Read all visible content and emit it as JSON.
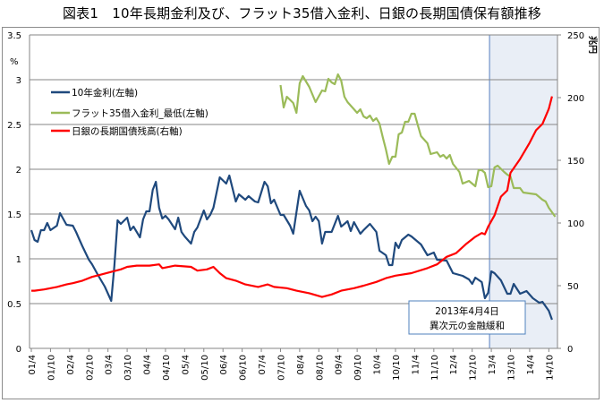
{
  "title": "図表1　10年長期金利及び、フラット35借入金利、日銀の長期国債保有額推移",
  "chart_data": {
    "type": "line",
    "title": "図表1　10年長期金利及び、フラット35借入金利、日銀の長期国債保有額推移",
    "left_axis": {
      "unit": "%",
      "range": [
        0,
        3.5
      ],
      "ticks": [
        "0",
        "0.5",
        "1",
        "1.5",
        "2",
        "2.5",
        "3",
        "3.5"
      ]
    },
    "right_axis": {
      "unit": "兆円",
      "range": [
        0,
        250
      ],
      "ticks": [
        "0",
        "50",
        "100",
        "150",
        "200",
        "250"
      ]
    },
    "x_axis": {
      "range": [
        "2001-04",
        "2014-12"
      ],
      "ticks": [
        "01/4",
        "01/10",
        "02/4",
        "02/10",
        "03/4",
        "03/10",
        "04/4",
        "04/10",
        "05/4",
        "05/10",
        "06/4",
        "06/10",
        "07/4",
        "07/10",
        "08/4",
        "08/10",
        "09/4",
        "09/10",
        "10/4",
        "10/10",
        "11/4",
        "11/10",
        "12/4",
        "12/10",
        "13/4",
        "13/10",
        "14/4",
        "14/10"
      ]
    },
    "grid": "horizontal",
    "legend_position": "top-left",
    "shaded_region": {
      "from": "2013-04",
      "to": "2014-12",
      "color": "#e9eef6"
    },
    "annotation": {
      "date": "2013-04",
      "line1": "2013年4月4日",
      "line2": "異次元の金融緩和"
    },
    "series": [
      {
        "name": "10年金利(左軸)",
        "axis": "left",
        "color": "#1f497d",
        "points": [
          [
            "2001-04",
            1.32
          ],
          [
            "2001-05",
            1.21
          ],
          [
            "2001-06",
            1.19
          ],
          [
            "2001-07",
            1.32
          ],
          [
            "2001-08",
            1.32
          ],
          [
            "2001-09",
            1.4
          ],
          [
            "2001-10",
            1.32
          ],
          [
            "2001-12",
            1.37
          ],
          [
            "2002-01",
            1.51
          ],
          [
            "2002-03",
            1.38
          ],
          [
            "2002-05",
            1.37
          ],
          [
            "2002-06",
            1.3
          ],
          [
            "2002-07",
            1.22
          ],
          [
            "2002-08",
            1.14
          ],
          [
            "2002-10",
            0.99
          ],
          [
            "2002-11",
            0.94
          ],
          [
            "2003-01",
            0.81
          ],
          [
            "2003-03",
            0.69
          ],
          [
            "2003-05",
            0.53
          ],
          [
            "2003-06",
            0.92
          ],
          [
            "2003-07",
            1.43
          ],
          [
            "2003-08",
            1.39
          ],
          [
            "2003-10",
            1.46
          ],
          [
            "2003-11",
            1.32
          ],
          [
            "2003-12",
            1.36
          ],
          [
            "2004-02",
            1.24
          ],
          [
            "2004-03",
            1.44
          ],
          [
            "2004-04",
            1.53
          ],
          [
            "2004-05",
            1.53
          ],
          [
            "2004-06",
            1.77
          ],
          [
            "2004-07",
            1.86
          ],
          [
            "2004-08",
            1.57
          ],
          [
            "2004-09",
            1.45
          ],
          [
            "2004-10",
            1.48
          ],
          [
            "2004-11",
            1.44
          ],
          [
            "2005-01",
            1.33
          ],
          [
            "2005-02",
            1.46
          ],
          [
            "2005-03",
            1.3
          ],
          [
            "2005-04",
            1.25
          ],
          [
            "2005-06",
            1.17
          ],
          [
            "2005-07",
            1.3
          ],
          [
            "2005-08",
            1.35
          ],
          [
            "2005-10",
            1.54
          ],
          [
            "2005-11",
            1.44
          ],
          [
            "2005-12",
            1.49
          ],
          [
            "2006-01",
            1.57
          ],
          [
            "2006-03",
            1.91
          ],
          [
            "2006-05",
            1.84
          ],
          [
            "2006-06",
            1.93
          ],
          [
            "2006-08",
            1.64
          ],
          [
            "2006-09",
            1.72
          ],
          [
            "2006-11",
            1.66
          ],
          [
            "2006-12",
            1.7
          ],
          [
            "2007-02",
            1.64
          ],
          [
            "2007-03",
            1.63
          ],
          [
            "2007-05",
            1.86
          ],
          [
            "2007-06",
            1.81
          ],
          [
            "2007-07",
            1.62
          ],
          [
            "2007-08",
            1.66
          ],
          [
            "2007-10",
            1.49
          ],
          [
            "2007-11",
            1.49
          ],
          [
            "2008-01",
            1.37
          ],
          [
            "2008-02",
            1.28
          ],
          [
            "2008-04",
            1.76
          ],
          [
            "2008-06",
            1.59
          ],
          [
            "2008-07",
            1.54
          ],
          [
            "2008-08",
            1.42
          ],
          [
            "2008-09",
            1.47
          ],
          [
            "2008-10",
            1.42
          ],
          [
            "2008-11",
            1.17
          ],
          [
            "2008-12",
            1.3
          ],
          [
            "2009-02",
            1.3
          ],
          [
            "2009-04",
            1.48
          ],
          [
            "2009-05",
            1.36
          ],
          [
            "2009-07",
            1.42
          ],
          [
            "2009-08",
            1.31
          ],
          [
            "2009-09",
            1.41
          ],
          [
            "2009-11",
            1.28
          ],
          [
            "2009-12",
            1.32
          ],
          [
            "2010-02",
            1.39
          ],
          [
            "2010-04",
            1.3
          ],
          [
            "2010-05",
            1.09
          ],
          [
            "2010-07",
            1.04
          ],
          [
            "2010-08",
            0.93
          ],
          [
            "2010-09",
            0.93
          ],
          [
            "2010-10",
            1.18
          ],
          [
            "2010-11",
            1.12
          ],
          [
            "2010-12",
            1.21
          ],
          [
            "2011-02",
            1.27
          ],
          [
            "2011-03",
            1.25
          ],
          [
            "2011-06",
            1.16
          ],
          [
            "2011-08",
            1.04
          ],
          [
            "2011-10",
            1.07
          ],
          [
            "2011-11",
            0.99
          ],
          [
            "2012-02",
            0.98
          ],
          [
            "2012-04",
            0.84
          ],
          [
            "2012-07",
            0.81
          ],
          [
            "2012-09",
            0.77
          ],
          [
            "2012-10",
            0.72
          ],
          [
            "2012-11",
            0.79
          ],
          [
            "2013-01",
            0.74
          ],
          [
            "2013-02",
            0.56
          ],
          [
            "2013-03",
            0.62
          ],
          [
            "2013-04",
            0.86
          ],
          [
            "2013-05",
            0.84
          ],
          [
            "2013-07",
            0.76
          ],
          [
            "2013-09",
            0.61
          ],
          [
            "2013-10",
            0.61
          ],
          [
            "2013-11",
            0.72
          ],
          [
            "2014-01",
            0.61
          ],
          [
            "2014-03",
            0.64
          ],
          [
            "2014-05",
            0.56
          ],
          [
            "2014-07",
            0.51
          ],
          [
            "2014-08",
            0.52
          ],
          [
            "2014-10",
            0.42
          ],
          [
            "2014-11",
            0.32
          ]
        ]
      },
      {
        "name": "フラット35借入金利_最低(左軸)",
        "axis": "left",
        "color": "#9bbb59",
        "points": [
          [
            "2007-10",
            2.94
          ],
          [
            "2007-11",
            2.69
          ],
          [
            "2007-12",
            2.81
          ],
          [
            "2008-02",
            2.74
          ],
          [
            "2008-03",
            2.63
          ],
          [
            "2008-04",
            2.96
          ],
          [
            "2008-05",
            3.04
          ],
          [
            "2008-07",
            2.92
          ],
          [
            "2008-09",
            2.75
          ],
          [
            "2008-11",
            2.88
          ],
          [
            "2008-12",
            2.87
          ],
          [
            "2009-01",
            3.01
          ],
          [
            "2009-02",
            2.97
          ],
          [
            "2009-03",
            2.95
          ],
          [
            "2009-04",
            3.06
          ],
          [
            "2009-05",
            2.99
          ],
          [
            "2009-06",
            2.81
          ],
          [
            "2009-07",
            2.75
          ],
          [
            "2009-09",
            2.67
          ],
          [
            "2009-10",
            2.63
          ],
          [
            "2009-11",
            2.67
          ],
          [
            "2009-12",
            2.59
          ],
          [
            "2010-01",
            2.57
          ],
          [
            "2010-02",
            2.6
          ],
          [
            "2010-03",
            2.54
          ],
          [
            "2010-04",
            2.57
          ],
          [
            "2010-05",
            2.51
          ],
          [
            "2010-06",
            2.36
          ],
          [
            "2010-07",
            2.22
          ],
          [
            "2010-08",
            2.06
          ],
          [
            "2010-09",
            2.14
          ],
          [
            "2010-10",
            2.14
          ],
          [
            "2010-11",
            2.39
          ],
          [
            "2010-12",
            2.41
          ],
          [
            "2011-01",
            2.53
          ],
          [
            "2011-02",
            2.53
          ],
          [
            "2011-03",
            2.62
          ],
          [
            "2011-04",
            2.62
          ],
          [
            "2011-05",
            2.49
          ],
          [
            "2011-06",
            2.37
          ],
          [
            "2011-08",
            2.29
          ],
          [
            "2011-09",
            2.17
          ],
          [
            "2011-11",
            2.19
          ],
          [
            "2011-12",
            2.14
          ],
          [
            "2012-01",
            2.16
          ],
          [
            "2012-02",
            2.12
          ],
          [
            "2012-03",
            2.16
          ],
          [
            "2012-04",
            2.06
          ],
          [
            "2012-06",
            1.97
          ],
          [
            "2012-07",
            1.84
          ],
          [
            "2012-09",
            1.87
          ],
          [
            "2012-11",
            1.81
          ],
          [
            "2012-12",
            1.99
          ],
          [
            "2013-01",
            1.99
          ],
          [
            "2013-02",
            1.96
          ],
          [
            "2013-03",
            1.8
          ],
          [
            "2013-04",
            1.81
          ],
          [
            "2013-05",
            2.02
          ],
          [
            "2013-06",
            2.04
          ],
          [
            "2013-08",
            1.97
          ],
          [
            "2013-09",
            1.94
          ],
          [
            "2013-10",
            1.92
          ],
          [
            "2013-11",
            1.79
          ],
          [
            "2014-01",
            1.79
          ],
          [
            "2014-02",
            1.74
          ],
          [
            "2014-04",
            1.73
          ],
          [
            "2014-06",
            1.72
          ],
          [
            "2014-08",
            1.66
          ],
          [
            "2014-09",
            1.64
          ],
          [
            "2014-10",
            1.57
          ],
          [
            "2014-12",
            1.47
          ]
        ]
      },
      {
        "name": "日銀の長期国債残高(右軸)",
        "axis": "right",
        "color": "#ff0000",
        "points": [
          [
            "2001-04",
            46
          ],
          [
            "2001-05",
            46
          ],
          [
            "2001-08",
            47
          ],
          [
            "2001-12",
            49
          ],
          [
            "2002-03",
            51
          ],
          [
            "2002-05",
            52
          ],
          [
            "2002-08",
            54
          ],
          [
            "2002-11",
            57
          ],
          [
            "2003-02",
            59
          ],
          [
            "2003-05",
            61
          ],
          [
            "2003-08",
            63
          ],
          [
            "2003-10",
            65
          ],
          [
            "2004-01",
            66
          ],
          [
            "2004-05",
            66
          ],
          [
            "2004-08",
            67
          ],
          [
            "2004-09",
            64
          ],
          [
            "2005-01",
            66
          ],
          [
            "2005-06",
            65
          ],
          [
            "2005-08",
            62
          ],
          [
            "2005-11",
            63
          ],
          [
            "2006-01",
            65
          ],
          [
            "2006-03",
            60
          ],
          [
            "2006-05",
            56
          ],
          [
            "2006-08",
            54
          ],
          [
            "2006-11",
            51
          ],
          [
            "2007-03",
            49
          ],
          [
            "2007-06",
            51
          ],
          [
            "2007-08",
            49
          ],
          [
            "2007-12",
            48
          ],
          [
            "2008-03",
            46
          ],
          [
            "2008-07",
            44
          ],
          [
            "2008-11",
            41
          ],
          [
            "2009-02",
            43
          ],
          [
            "2009-05",
            46
          ],
          [
            "2009-09",
            48
          ],
          [
            "2009-12",
            50
          ],
          [
            "2010-04",
            53
          ],
          [
            "2010-07",
            56
          ],
          [
            "2010-10",
            58
          ],
          [
            "2011-03",
            60
          ],
          [
            "2011-08",
            64
          ],
          [
            "2011-11",
            67
          ],
          [
            "2012-02",
            73
          ],
          [
            "2012-05",
            76
          ],
          [
            "2012-08",
            83
          ],
          [
            "2012-11",
            89
          ],
          [
            "2013-01",
            92
          ],
          [
            "2013-02",
            91
          ],
          [
            "2013-03",
            97
          ],
          [
            "2013-05",
            106
          ],
          [
            "2013-07",
            121
          ],
          [
            "2013-09",
            126
          ],
          [
            "2013-10",
            140
          ],
          [
            "2014-01",
            151
          ],
          [
            "2014-04",
            164
          ],
          [
            "2014-06",
            174
          ],
          [
            "2014-08",
            179
          ],
          [
            "2014-10",
            191
          ],
          [
            "2014-11",
            201
          ]
        ]
      }
    ]
  }
}
